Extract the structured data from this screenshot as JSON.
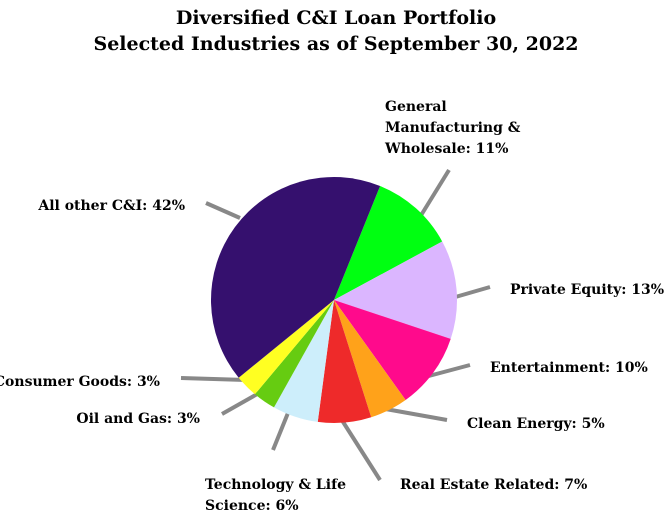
{
  "chart_data": {
    "type": "pie",
    "title": [
      "Diversified C&I Loan Portfolio",
      "Selected Industries as of September 30, 2022"
    ],
    "start_category": "General Manufacturing & Wholesale",
    "direction": "clockwise",
    "slices": [
      {
        "label": [
          "General",
          "Manufacturing &",
          "Wholesale: 11%"
        ],
        "category": "General Manufacturing & Wholesale",
        "value": 11,
        "color": "#00ff11"
      },
      {
        "label": [
          "Private Equity: 13%"
        ],
        "category": "Private Equity",
        "value": 13,
        "color": "#dbb6ff"
      },
      {
        "label": [
          "Entertainment: 10%"
        ],
        "category": "Entertainment",
        "value": 10,
        "color": "#ff0a8c"
      },
      {
        "label": [
          "Clean Energy: 5%"
        ],
        "category": "Clean Energy",
        "value": 5,
        "color": "#ffa21a"
      },
      {
        "label": [
          "Real Estate Related: 7%"
        ],
        "category": "Real Estate Related",
        "value": 7,
        "color": "#ee2a2a"
      },
      {
        "label": [
          "Technology & Life",
          "Science: 6%"
        ],
        "category": "Technology & Life Science",
        "value": 6,
        "color": "#cdeefb"
      },
      {
        "label": [
          "Oil and Gas: 3%"
        ],
        "category": "Oil and Gas",
        "value": 3,
        "color": "#66cc11"
      },
      {
        "label": [
          "Consumer Goods: 3%"
        ],
        "category": "Consumer Goods",
        "value": 3,
        "color": "#ffff22"
      },
      {
        "label": [
          "All other C&I: 42%"
        ],
        "category": "All other C&I",
        "value": 42,
        "color": "#35106e"
      }
    ]
  }
}
